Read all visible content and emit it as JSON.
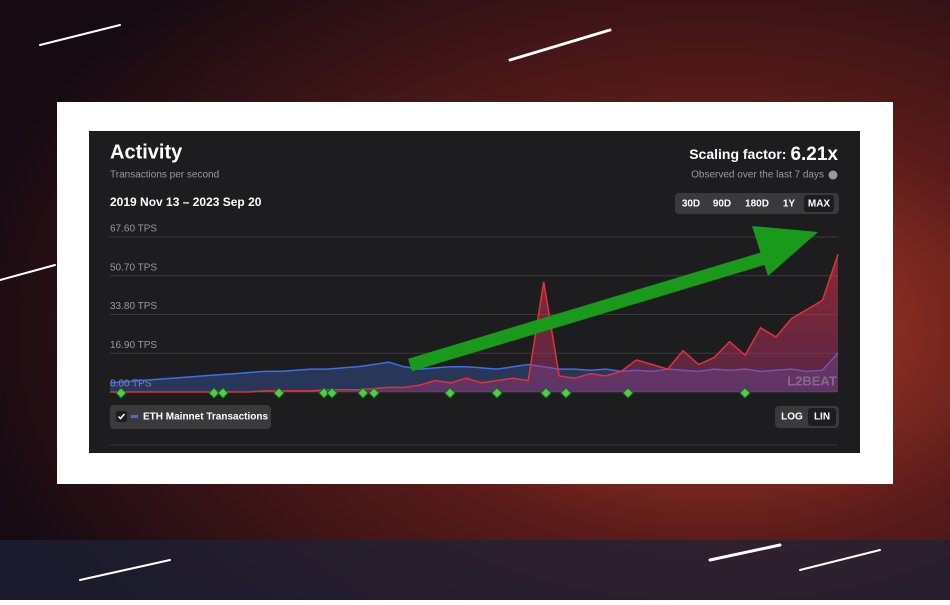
{
  "header": {
    "title": "Activity",
    "subtitle": "Transactions per second",
    "range": "2019 Nov 13 – 2023 Sep 20",
    "scaling_label": "Scaling factor:",
    "scaling_value": "6.21x",
    "scaling_note": "Observed over the last 7 days"
  },
  "controls": {
    "range_buttons": [
      "30D",
      "90D",
      "180D",
      "1Y",
      "MAX"
    ],
    "selected_range": "MAX",
    "scale_buttons": [
      "LOG",
      "LIN"
    ],
    "selected_scale": "LIN"
  },
  "watermark": "L2BEAT",
  "chart_data": {
    "type": "area",
    "ylim": [
      0,
      67.6
    ],
    "yticks": [
      {
        "value": 0,
        "label": "0.00 TPS"
      },
      {
        "value": 16.9,
        "label": "16.90 TPS"
      },
      {
        "value": 33.8,
        "label": "33.80 TPS"
      },
      {
        "value": 50.7,
        "label": "50.70 TPS"
      },
      {
        "value": 67.6,
        "label": "67.60 TPS"
      }
    ],
    "grid": true,
    "series": [
      {
        "name": "ETH Mainnet Transactions",
        "color": "#3f6fe0",
        "values": [
          4,
          4.5,
          5,
          5.5,
          6,
          6.5,
          7,
          7.5,
          8,
          8.5,
          9,
          9,
          9.5,
          10,
          10,
          10.5,
          11,
          12,
          13,
          11,
          10,
          10.5,
          11,
          11,
          10.5,
          10,
          11,
          12,
          11,
          10,
          10,
          9.5,
          10,
          9,
          9.5,
          9,
          10,
          9.5,
          9,
          10,
          9.5,
          10,
          9,
          9.5,
          10,
          9,
          9.5,
          17
        ]
      },
      {
        "color": "#e0323c",
        "values": [
          0,
          0,
          0,
          0,
          0,
          0,
          0,
          0,
          0,
          0,
          0.5,
          0.5,
          0.5,
          0.5,
          1,
          1,
          1,
          1.5,
          2,
          2,
          3,
          5,
          4,
          6,
          4,
          5,
          6,
          5,
          48,
          7,
          6,
          8,
          7,
          9,
          14,
          12,
          10,
          18,
          12,
          15,
          22,
          16,
          28,
          24,
          32,
          36,
          40,
          60
        ]
      }
    ]
  }
}
